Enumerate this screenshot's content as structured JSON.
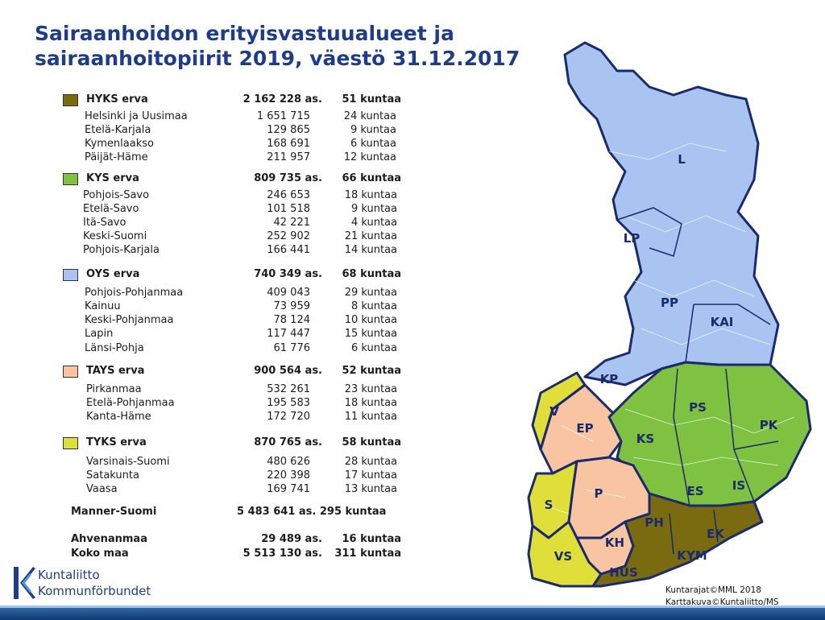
{
  "title_line1": "Sairaanhoidon erityisvastuualueet ja",
  "title_line2": "sairaanhoitopiirit 2019, väestö 31.12.2017",
  "groups": [
    {
      "name": "HYKS erva",
      "pop": "2 162 228 as.",
      "kunnat": "51 kuntaa",
      "color": "#7a6a10",
      "districts": [
        {
          "name": "Helsinki ja Uusimaa",
          "pop": "1 651 715",
          "kunnat": "24 kuntaa"
        },
        {
          "name": "Etelä-Karjala",
          "pop": "129 865",
          "kunnat": "9 kuntaa"
        },
        {
          "name": "Kymenlaakso",
          "pop": "168 691",
          "kunnat": "6 kuntaa"
        },
        {
          "name": "Päijät-Häme",
          "pop": "211 957",
          "kunnat": "12 kuntaa"
        }
      ]
    },
    {
      "name": "KYS erva",
      "pop": "809 735 as.",
      "kunnat": "66 kuntaa",
      "color": "#7fc241",
      "districts": [
        {
          "name": "Pohjois-Savo",
          "pop": "246 653",
          "kunnat": "18 kuntaa"
        },
        {
          "name": "Etelä-Savo",
          "pop": "101 518",
          "kunnat": "9 kuntaa"
        },
        {
          "name": "Itä-Savo",
          "pop": "42 221",
          "kunnat": "4 kuntaa"
        },
        {
          "name": "Keski-Suomi",
          "pop": "252 902",
          "kunnat": "21 kuntaa"
        },
        {
          "name": "Pohjois-Karjala",
          "pop": "166 441",
          "kunnat": "14 kuntaa"
        }
      ]
    },
    {
      "name": "OYS erva",
      "pop": "740 349 as.",
      "kunnat": "68 kuntaa",
      "color": "#a9c4f0",
      "districts": [
        {
          "name": "Pohjois-Pohjanmaa",
          "pop": "409 043",
          "kunnat": "29 kuntaa"
        },
        {
          "name": "Kainuu",
          "pop": "73 959",
          "kunnat": "8 kuntaa"
        },
        {
          "name": "Keski-Pohjanmaa",
          "pop": "78 124",
          "kunnat": "10 kuntaa"
        },
        {
          "name": "Lapin",
          "pop": "117 447",
          "kunnat": "15 kuntaa"
        },
        {
          "name": "Länsi-Pohja",
          "pop": "61 776",
          "kunnat": "6 kuntaa"
        }
      ]
    },
    {
      "name": "TAYS erva",
      "pop": "900 564 as.",
      "kunnat": "52 kuntaa",
      "color": "#f8c4a2",
      "districts": [
        {
          "name": "Pirkanmaa",
          "pop": "532 261",
          "kunnat": "23 kuntaa"
        },
        {
          "name": "Etelä-Pohjanmaa",
          "pop": "195 583",
          "kunnat": "18 kuntaa"
        },
        {
          "name": "Kanta-Häme",
          "pop": "172 720",
          "kunnat": "11 kuntaa"
        }
      ]
    },
    {
      "name": "TYKS erva",
      "pop": "870 765 as.",
      "kunnat": "58 kuntaa",
      "color": "#e0df3a",
      "districts": [
        {
          "name": "Varsinais-Suomi",
          "pop": "480 626",
          "kunnat": "28 kuntaa"
        },
        {
          "name": "Satakunta",
          "pop": "220 398",
          "kunnat": "17 kuntaa"
        },
        {
          "name": "Vaasa",
          "pop": "169 741",
          "kunnat": "13 kuntaa"
        }
      ]
    }
  ],
  "totals": [
    {
      "name": "Manner-Suomi",
      "value": "5 483 641 as. 295 kuntaa"
    },
    {
      "name": "Ahvenanmaa",
      "pop": "29 489 as.",
      "kunnat": "16 kuntaa"
    },
    {
      "name": "Koko maa",
      "pop": "5 513 130 as.",
      "kunnat": "311 kuntaa"
    }
  ],
  "map_labels": [
    "L",
    "LP",
    "PP",
    "KAI",
    "KP",
    "PS",
    "PK",
    "KS",
    "EP",
    "V",
    "ES",
    "IS",
    "S",
    "P",
    "PH",
    "EK",
    "KH",
    "KYM",
    "VS",
    "HUS"
  ],
  "logo": {
    "line1": "Kuntaliitto",
    "line2": "Kommunförbundet"
  },
  "credit": {
    "line1": "Kuntarajat©MML 2018",
    "line2": "Karttakuva©Kuntaliitto/MS"
  },
  "colors": {
    "title": "#1f3c88",
    "hyks": "#7a6a10",
    "kys": "#7fc241",
    "oys": "#a9c4f0",
    "tays": "#f8c4a2",
    "tyks": "#e0df3a",
    "border": "#1a2a6c"
  }
}
